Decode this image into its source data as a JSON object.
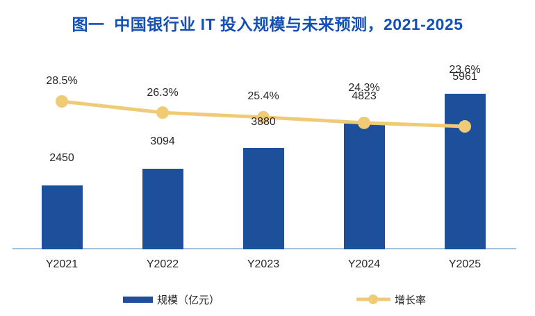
{
  "title": "图一  中国银行业 IT 投入规模与未来预测，2021-2025",
  "chart_data": {
    "type": "bar",
    "combo": "bar+line",
    "title": "图一  中国银行业 IT 投入规模与未来预测，2021-2025",
    "categories": [
      "Y2021",
      "Y2022",
      "Y2023",
      "Y2024",
      "Y2025"
    ],
    "series": [
      {
        "name": "规模（亿元）",
        "type": "bar",
        "values": [
          2450,
          3094,
          3880,
          4823,
          5961
        ],
        "value_labels": [
          "2450",
          "3094",
          "3880",
          "4823",
          "5961"
        ],
        "color": "#1E4F9B"
      },
      {
        "name": "增长率",
        "type": "line",
        "unit": "%",
        "values": [
          28.5,
          26.3,
          25.4,
          24.3,
          23.6
        ],
        "value_labels": [
          "28.5%",
          "26.3%",
          "25.4%",
          "24.3%",
          "23.6%"
        ],
        "color": "#F0CB76"
      }
    ],
    "xlabel": "",
    "ylabel": "",
    "grid": false,
    "value_axes_visible": false,
    "legend_position": "bottom"
  },
  "legend": {
    "items": [
      {
        "label": "规模（亿元）",
        "series": "bar"
      },
      {
        "label": "增长率",
        "series": "line"
      }
    ]
  },
  "colors": {
    "background": "#FFFFFF",
    "title": "#1450B4",
    "bar": "#1E4F9B",
    "line": "#F0CB76",
    "axis_line": "#A8C0DE",
    "text": "#262626"
  }
}
